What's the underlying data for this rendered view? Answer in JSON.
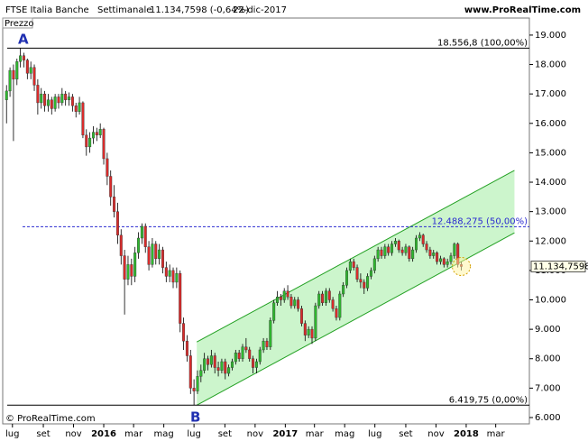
{
  "chart_data": {
    "type": "candlestick",
    "title": "FTSE Italia Banche",
    "subtitle": "Settimanale",
    "last_label": "11.134,7598 (-0,64%)",
    "date": "22-dic-2017",
    "source": "www.ProRealTime.com",
    "y_label": "Prezzo",
    "copyright": "© ProRealTime.com",
    "annotations": [
      "A",
      "B"
    ],
    "up_color": "#2eb82e",
    "down_color": "#d92b2b",
    "ylim": [
      5785,
      19580
    ],
    "xlim": [
      -1.1,
      150.6
    ],
    "yticks": [
      {
        "value": 6000,
        "label": "6.000"
      },
      {
        "value": 7000,
        "label": "7.000"
      },
      {
        "value": 8000,
        "label": "8.000"
      },
      {
        "value": 9000,
        "label": "9.000"
      },
      {
        "value": 10000,
        "label": "10.000"
      },
      {
        "value": 11000,
        "label": "11.000"
      },
      {
        "value": 12000,
        "label": "12.000"
      },
      {
        "value": 13000,
        "label": "13.000"
      },
      {
        "value": 14000,
        "label": "14.000"
      },
      {
        "value": 15000,
        "label": "15.000"
      },
      {
        "value": 16000,
        "label": "16.000"
      },
      {
        "value": 17000,
        "label": "17.000"
      },
      {
        "value": 18000,
        "label": "18.000"
      },
      {
        "value": 19000,
        "label": "19.000"
      }
    ],
    "xticks": [
      {
        "value": 1.7,
        "label": "lug"
      },
      {
        "value": 10.6,
        "label": "set"
      },
      {
        "value": 19.3,
        "label": "nov"
      },
      {
        "value": 28,
        "label": "2016"
      },
      {
        "value": 36.6,
        "label": "mar"
      },
      {
        "value": 45.3,
        "label": "mag"
      },
      {
        "value": 54,
        "label": "lug"
      },
      {
        "value": 62.9,
        "label": "set"
      },
      {
        "value": 71.6,
        "label": "nov"
      },
      {
        "value": 80.3,
        "label": "2017"
      },
      {
        "value": 88.7,
        "label": "mar"
      },
      {
        "value": 97.4,
        "label": "mag"
      },
      {
        "value": 106.1,
        "label": "lug"
      },
      {
        "value": 115,
        "label": "set"
      },
      {
        "value": 123.7,
        "label": "nov"
      },
      {
        "value": 132.4,
        "label": "2018"
      },
      {
        "value": 140.9,
        "label": "mar"
      }
    ],
    "levels": [
      {
        "value": 18556.8,
        "label": "18.556,8 (100,00%)",
        "color": "#000000",
        "dashed": false
      },
      {
        "value": 12488.275,
        "label": "12.488,275 (50,00%)",
        "color": "#2a2ad0",
        "dashed": true
      },
      {
        "value": 6419.75,
        "label": "6.419,75 (0,00%)",
        "color": "#000000",
        "dashed": false
      }
    ],
    "last_price": {
      "value": 11134.7598,
      "label": "11.134,7598"
    },
    "channel": {
      "x": [
        54.8,
        146.3
      ],
      "lower": [
        6419.75,
        12280
      ],
      "upper": [
        8570,
        14400
      ],
      "color": "#22a022"
    },
    "ohlc": [
      [
        16800,
        17300,
        16000,
        17100
      ],
      [
        17100,
        17900,
        16900,
        17800
      ],
      [
        17800,
        18000,
        15400,
        17500
      ],
      [
        17500,
        18200,
        17300,
        18100
      ],
      [
        18100,
        18556.8,
        17900,
        18300
      ],
      [
        18300,
        18400,
        17900,
        18150
      ],
      [
        18150,
        18200,
        17500,
        17700
      ],
      [
        17700,
        18100,
        17500,
        17900
      ],
      [
        17900,
        18000,
        17100,
        17300
      ],
      [
        17300,
        17500,
        16300,
        16700
      ],
      [
        16700,
        17200,
        16500,
        17000
      ],
      [
        17000,
        17100,
        16400,
        16600
      ],
      [
        16600,
        17000,
        16400,
        16800
      ],
      [
        16800,
        16900,
        16300,
        16500
      ],
      [
        16500,
        17000,
        16400,
        16900
      ],
      [
        16900,
        17000,
        16500,
        16700
      ],
      [
        16700,
        17200,
        16600,
        17000
      ],
      [
        17000,
        17100,
        16600,
        16800
      ],
      [
        16800,
        17050,
        16600,
        16900
      ],
      [
        16900,
        17000,
        16400,
        16600
      ],
      [
        16600,
        16700,
        16200,
        16400
      ],
      [
        16400,
        16900,
        16300,
        16700
      ],
      [
        16700,
        16750,
        15500,
        15600
      ],
      [
        15600,
        15800,
        14900,
        15200
      ],
      [
        15200,
        15700,
        15000,
        15500
      ],
      [
        15500,
        15900,
        15300,
        15700
      ],
      [
        15700,
        15850,
        15400,
        15600
      ],
      [
        15600,
        16000,
        15500,
        15800
      ],
      [
        15800,
        15850,
        14600,
        14800
      ],
      [
        14800,
        15000,
        13900,
        14200
      ],
      [
        14200,
        14400,
        13200,
        13500
      ],
      [
        13500,
        13900,
        12800,
        13000
      ],
      [
        13000,
        13300,
        11900,
        12200
      ],
      [
        12200,
        12400,
        11200,
        11500
      ],
      [
        11500,
        11700,
        9500,
        10700
      ],
      [
        10700,
        11500,
        10500,
        11200
      ],
      [
        11200,
        11400,
        10500,
        10800
      ],
      [
        10800,
        11800,
        10600,
        11600
      ],
      [
        11600,
        12300,
        11400,
        12100
      ],
      [
        12100,
        12600,
        11900,
        12500
      ],
      [
        12500,
        12600,
        11600,
        11800
      ],
      [
        11800,
        12000,
        11000,
        11200
      ],
      [
        11200,
        12100,
        11100,
        11900
      ],
      [
        11900,
        12000,
        11200,
        11400
      ],
      [
        11400,
        11900,
        11200,
        11700
      ],
      [
        11700,
        11800,
        10900,
        11100
      ],
      [
        11100,
        11300,
        10600,
        10800
      ],
      [
        10800,
        11200,
        10600,
        11000
      ],
      [
        11000,
        11100,
        10400,
        10600
      ],
      [
        10600,
        11100,
        10400,
        10900
      ],
      [
        10900,
        11000,
        8900,
        9200
      ],
      [
        9200,
        9400,
        8300,
        8600
      ],
      [
        8600,
        8800,
        7900,
        8100
      ],
      [
        8100,
        8300,
        6800,
        7000
      ],
      [
        7000,
        7300,
        6419.75,
        6900
      ],
      [
        6900,
        7600,
        6800,
        7400
      ],
      [
        7400,
        7800,
        7200,
        7600
      ],
      [
        7600,
        8200,
        7500,
        8000
      ],
      [
        8000,
        8100,
        7600,
        7800
      ],
      [
        7800,
        8300,
        7700,
        8100
      ],
      [
        8100,
        8200,
        7500,
        7700
      ],
      [
        7700,
        7900,
        7400,
        7600
      ],
      [
        7600,
        8000,
        7500,
        7900
      ],
      [
        7900,
        8000,
        7300,
        7500
      ],
      [
        7500,
        7800,
        7400,
        7700
      ],
      [
        7700,
        8000,
        7600,
        7900
      ],
      [
        7900,
        8300,
        7800,
        8200
      ],
      [
        8200,
        8300,
        7900,
        8000
      ],
      [
        8000,
        8500,
        7900,
        8400
      ],
      [
        8400,
        8700,
        8200,
        8300
      ],
      [
        8300,
        8400,
        7900,
        8000
      ],
      [
        8000,
        8100,
        7500,
        7700
      ],
      [
        7700,
        8000,
        7500,
        7900
      ],
      [
        7900,
        8400,
        7800,
        8300
      ],
      [
        8300,
        8700,
        8200,
        8600
      ],
      [
        8600,
        8700,
        8300,
        8400
      ],
      [
        8400,
        9400,
        8300,
        9300
      ],
      [
        9300,
        10000,
        9200,
        9900
      ],
      [
        9900,
        10300,
        9800,
        10100
      ],
      [
        10100,
        10200,
        9800,
        10000
      ],
      [
        10000,
        10400,
        9900,
        10300
      ],
      [
        10300,
        10500,
        10000,
        10100
      ],
      [
        10100,
        10200,
        9700,
        9800
      ],
      [
        9800,
        10100,
        9700,
        10000
      ],
      [
        10000,
        10100,
        9600,
        9700
      ],
      [
        9700,
        9800,
        9100,
        9200
      ],
      [
        9200,
        9300,
        8600,
        8800
      ],
      [
        8800,
        9100,
        8700,
        9000
      ],
      [
        9000,
        9100,
        8500,
        8700
      ],
      [
        8700,
        9900,
        8600,
        9800
      ],
      [
        9800,
        10300,
        9700,
        10200
      ],
      [
        10200,
        10300,
        9800,
        9900
      ],
      [
        9900,
        10400,
        9800,
        10300
      ],
      [
        10300,
        10400,
        9900,
        10000
      ],
      [
        10000,
        10100,
        9600,
        9700
      ],
      [
        9700,
        9800,
        9300,
        9400
      ],
      [
        9400,
        10300,
        9300,
        10200
      ],
      [
        10200,
        10600,
        10100,
        10500
      ],
      [
        10500,
        11100,
        10400,
        11000
      ],
      [
        11000,
        11400,
        10900,
        11300
      ],
      [
        11300,
        11400,
        11000,
        11100
      ],
      [
        11100,
        11200,
        10600,
        10700
      ],
      [
        10700,
        10900,
        10400,
        10600
      ],
      [
        10600,
        10700,
        10200,
        10400
      ],
      [
        10400,
        10900,
        10300,
        10800
      ],
      [
        10800,
        11100,
        10700,
        11000
      ],
      [
        11000,
        11500,
        10900,
        11400
      ],
      [
        11400,
        11800,
        11300,
        11700
      ],
      [
        11700,
        11800,
        11400,
        11500
      ],
      [
        11500,
        11900,
        11400,
        11800
      ],
      [
        11800,
        11900,
        11500,
        11600
      ],
      [
        11600,
        12000,
        11500,
        11900
      ],
      [
        11900,
        12100,
        11800,
        12000
      ],
      [
        12000,
        12050,
        11600,
        11700
      ],
      [
        11700,
        11800,
        11500,
        11600
      ],
      [
        11600,
        11900,
        11500,
        11800
      ],
      [
        11800,
        11850,
        11300,
        11400
      ],
      [
        11400,
        11800,
        11300,
        11700
      ],
      [
        11700,
        12200,
        11600,
        12100
      ],
      [
        12100,
        12300,
        12000,
        12200
      ],
      [
        12200,
        12250,
        11800,
        11900
      ],
      [
        11900,
        12000,
        11600,
        11700
      ],
      [
        11700,
        11800,
        11400,
        11500
      ],
      [
        11500,
        11700,
        11400,
        11600
      ],
      [
        11600,
        11650,
        11200,
        11300
      ],
      [
        11300,
        11500,
        11200,
        11400
      ],
      [
        11400,
        11450,
        11100,
        11200
      ],
      [
        11200,
        11400,
        11100,
        11300
      ],
      [
        11300,
        11600,
        11200,
        11500
      ],
      [
        11500,
        11950,
        11400,
        11900
      ],
      [
        11900,
        11950,
        11100,
        11200
      ],
      [
        11200,
        11300,
        11000,
        11134.7598
      ]
    ]
  }
}
